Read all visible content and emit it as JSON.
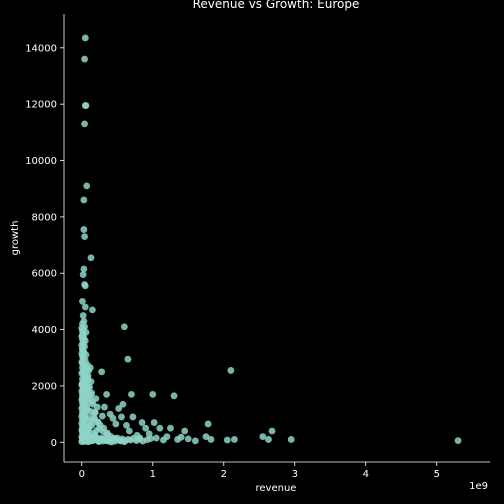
{
  "chart_data": {
    "type": "scatter",
    "title": "Revenue vs Growth: Europe",
    "xlabel": "revenue",
    "ylabel": "growth",
    "x_offset_label": "1e9",
    "xlim": [
      -0.25,
      5.75
    ],
    "ylim": [
      -700,
      15200
    ],
    "x_ticks": [
      0,
      1,
      2,
      3,
      4,
      5
    ],
    "x_tick_labels": [
      "0",
      "1",
      "2",
      "3",
      "4",
      "5"
    ],
    "y_ticks": [
      0,
      2000,
      4000,
      6000,
      8000,
      10000,
      12000,
      14000
    ],
    "y_tick_labels": [
      "0",
      "2000",
      "4000",
      "6000",
      "8000",
      "10000",
      "12000",
      "14000"
    ],
    "grid": false,
    "marker_color": "#8dd3c7",
    "background_color": "#000000",
    "x_units": "1e9",
    "points": [
      [
        0.05,
        14350
      ],
      [
        0.04,
        13600
      ],
      [
        0.06,
        11950
      ],
      [
        0.05,
        11950
      ],
      [
        0.04,
        11300
      ],
      [
        0.07,
        9100
      ],
      [
        0.03,
        8600
      ],
      [
        0.03,
        7550
      ],
      [
        0.04,
        7300
      ],
      [
        0.13,
        6550
      ],
      [
        0.03,
        6150
      ],
      [
        0.02,
        5950
      ],
      [
        0.04,
        5600
      ],
      [
        0.05,
        5550
      ],
      [
        0.01,
        5000
      ],
      [
        0.05,
        4800
      ],
      [
        0.15,
        4700
      ],
      [
        0.6,
        4100
      ],
      [
        0.65,
        2950
      ],
      [
        0.02,
        4500
      ],
      [
        0.03,
        4300
      ],
      [
        0.01,
        4200
      ],
      [
        0.04,
        4100
      ],
      [
        0.02,
        4000
      ],
      [
        0.06,
        3900
      ],
      [
        0.01,
        3800
      ],
      [
        0.03,
        3700
      ],
      [
        0.05,
        3600
      ],
      [
        0.02,
        3500
      ],
      [
        0.04,
        3400
      ],
      [
        0.01,
        3300
      ],
      [
        0.03,
        3200
      ],
      [
        0.06,
        3100
      ],
      [
        0.02,
        3000
      ],
      [
        0.05,
        2900
      ],
      [
        0.01,
        2800
      ],
      [
        0.03,
        2700
      ],
      [
        0.07,
        2600
      ],
      [
        0.12,
        2650
      ],
      [
        0.02,
        2500
      ],
      [
        0.04,
        2400
      ],
      [
        0.06,
        2300
      ],
      [
        0.09,
        2200
      ],
      [
        0.01,
        2100
      ],
      [
        0.03,
        2000
      ],
      [
        0.05,
        1900
      ],
      [
        0.08,
        1850
      ],
      [
        0.02,
        1800
      ],
      [
        0.04,
        1700
      ],
      [
        0.1,
        1650
      ],
      [
        0.01,
        1600
      ],
      [
        0.06,
        1500
      ],
      [
        0.03,
        1400
      ],
      [
        0.15,
        1450
      ],
      [
        0.02,
        1300
      ],
      [
        0.05,
        1200
      ],
      [
        0.08,
        1150
      ],
      [
        0.12,
        1100
      ],
      [
        0.01,
        1000
      ],
      [
        0.04,
        950
      ],
      [
        0.07,
        900
      ],
      [
        0.18,
        850
      ],
      [
        0.02,
        800
      ],
      [
        0.1,
        750
      ],
      [
        0.22,
        700
      ],
      [
        0.03,
        650
      ],
      [
        0.14,
        600
      ],
      [
        0.06,
        550
      ],
      [
        0.25,
        500
      ],
      [
        0.01,
        450
      ],
      [
        0.09,
        400
      ],
      [
        0.3,
        380
      ],
      [
        0.02,
        350
      ],
      [
        0.17,
        320
      ],
      [
        0.05,
        300
      ],
      [
        0.35,
        280
      ],
      [
        0.11,
        260
      ],
      [
        0.03,
        240
      ],
      [
        0.4,
        220
      ],
      [
        0.07,
        200
      ],
      [
        0.2,
        180
      ],
      [
        0.01,
        160
      ],
      [
        0.45,
        150
      ],
      [
        0.13,
        140
      ],
      [
        0.04,
        120
      ],
      [
        0.28,
        110
      ],
      [
        0.08,
        100
      ],
      [
        0.5,
        90
      ],
      [
        0.02,
        80
      ],
      [
        0.16,
        70
      ],
      [
        0.33,
        60
      ],
      [
        0.06,
        50
      ],
      [
        0.55,
        45
      ],
      [
        0.12,
        40
      ],
      [
        0.38,
        35
      ],
      [
        0.03,
        30
      ],
      [
        0.24,
        25
      ],
      [
        0.6,
        20
      ],
      [
        0.09,
        15
      ],
      [
        0.42,
        10
      ],
      [
        0.15,
        60
      ],
      [
        0.27,
        140
      ],
      [
        0.19,
        230
      ],
      [
        0.36,
        330
      ],
      [
        0.21,
        420
      ],
      [
        0.31,
        500
      ],
      [
        0.26,
        610
      ],
      [
        0.23,
        720
      ],
      [
        0.17,
        820
      ],
      [
        0.29,
        930
      ],
      [
        0.19,
        1050
      ],
      [
        0.22,
        1250
      ],
      [
        0.16,
        1350
      ],
      [
        0.2,
        1550
      ],
      [
        0.14,
        1750
      ],
      [
        0.11,
        1950
      ],
      [
        0.13,
        2150
      ],
      [
        0.09,
        2350
      ],
      [
        0.1,
        2550
      ],
      [
        0.08,
        2750
      ],
      [
        0.28,
        2500
      ],
      [
        0.35,
        1700
      ],
      [
        0.32,
        1250
      ],
      [
        0.4,
        1000
      ],
      [
        0.44,
        850
      ],
      [
        0.48,
        650
      ],
      [
        0.52,
        1200
      ],
      [
        0.58,
        1350
      ],
      [
        0.56,
        900
      ],
      [
        0.63,
        600
      ],
      [
        0.67,
        400
      ],
      [
        0.7,
        1700
      ],
      [
        0.72,
        900
      ],
      [
        0.78,
        250
      ],
      [
        0.82,
        150
      ],
      [
        0.85,
        700
      ],
      [
        0.9,
        500
      ],
      [
        0.95,
        300
      ],
      [
        1.0,
        1700
      ],
      [
        1.02,
        700
      ],
      [
        1.05,
        150
      ],
      [
        1.1,
        500
      ],
      [
        1.15,
        80
      ],
      [
        1.2,
        200
      ],
      [
        1.25,
        500
      ],
      [
        1.3,
        1650
      ],
      [
        1.35,
        100
      ],
      [
        1.4,
        180
      ],
      [
        1.45,
        400
      ],
      [
        1.5,
        120
      ],
      [
        1.6,
        50
      ],
      [
        1.75,
        200
      ],
      [
        1.78,
        650
      ],
      [
        1.82,
        100
      ],
      [
        2.05,
        80
      ],
      [
        2.1,
        2550
      ],
      [
        2.15,
        100
      ],
      [
        2.55,
        200
      ],
      [
        2.63,
        100
      ],
      [
        2.68,
        400
      ],
      [
        2.95,
        100
      ],
      [
        5.3,
        60
      ],
      [
        0.0,
        20
      ],
      [
        0.01,
        70
      ],
      [
        0.02,
        130
      ],
      [
        0.0,
        190
      ],
      [
        0.03,
        250
      ],
      [
        0.01,
        310
      ],
      [
        0.02,
        370
      ],
      [
        0.0,
        430
      ],
      [
        0.04,
        490
      ],
      [
        0.01,
        550
      ],
      [
        0.02,
        610
      ],
      [
        0.0,
        670
      ],
      [
        0.03,
        730
      ],
      [
        0.01,
        790
      ],
      [
        0.05,
        850
      ],
      [
        0.0,
        910
      ],
      [
        0.02,
        970
      ],
      [
        0.04,
        1030
      ],
      [
        0.01,
        1090
      ],
      [
        0.03,
        1150
      ],
      [
        0.0,
        1210
      ],
      [
        0.02,
        1270
      ],
      [
        0.05,
        1330
      ],
      [
        0.01,
        1390
      ],
      [
        0.03,
        1450
      ],
      [
        0.0,
        1510
      ],
      [
        0.02,
        1570
      ],
      [
        0.04,
        1630
      ],
      [
        0.01,
        1690
      ],
      [
        0.03,
        1750
      ],
      [
        0.0,
        1810
      ],
      [
        0.02,
        1870
      ],
      [
        0.05,
        1930
      ],
      [
        0.01,
        1990
      ],
      [
        0.0,
        2050
      ],
      [
        0.02,
        2150
      ],
      [
        0.01,
        2250
      ],
      [
        0.03,
        2350
      ],
      [
        0.0,
        2450
      ],
      [
        0.02,
        2550
      ],
      [
        0.01,
        2650
      ],
      [
        0.03,
        2750
      ],
      [
        0.0,
        2850
      ],
      [
        0.02,
        2950
      ],
      [
        0.01,
        3050
      ],
      [
        0.0,
        3150
      ],
      [
        0.02,
        3250
      ],
      [
        0.01,
        3350
      ],
      [
        0.0,
        3450
      ],
      [
        0.02,
        3550
      ],
      [
        0.01,
        3650
      ],
      [
        0.0,
        3750
      ],
      [
        0.02,
        3850
      ],
      [
        0.01,
        3950
      ],
      [
        0.0,
        4050
      ],
      [
        0.06,
        180
      ],
      [
        0.08,
        320
      ],
      [
        0.1,
        460
      ],
      [
        0.12,
        620
      ],
      [
        0.14,
        780
      ],
      [
        0.16,
        940
      ],
      [
        0.18,
        1080
      ],
      [
        0.07,
        1230
      ],
      [
        0.09,
        1380
      ],
      [
        0.11,
        1530
      ],
      [
        0.13,
        1680
      ],
      [
        0.07,
        1830
      ],
      [
        0.09,
        1980
      ],
      [
        0.06,
        2130
      ],
      [
        0.08,
        2280
      ],
      [
        0.06,
        2430
      ],
      [
        0.07,
        2580
      ],
      [
        0.05,
        2700
      ],
      [
        0.08,
        60
      ],
      [
        0.11,
        110
      ],
      [
        0.14,
        170
      ],
      [
        0.17,
        80
      ],
      [
        0.2,
        120
      ],
      [
        0.23,
        50
      ],
      [
        0.26,
        90
      ],
      [
        0.29,
        40
      ],
      [
        0.32,
        130
      ],
      [
        0.35,
        70
      ],
      [
        0.38,
        160
      ],
      [
        0.41,
        60
      ],
      [
        0.44,
        110
      ],
      [
        0.47,
        40
      ],
      [
        0.5,
        150
      ],
      [
        0.53,
        70
      ],
      [
        0.57,
        120
      ],
      [
        0.61,
        50
      ],
      [
        0.65,
        100
      ],
      [
        0.69,
        80
      ],
      [
        0.73,
        140
      ],
      [
        0.77,
        60
      ],
      [
        0.81,
        110
      ],
      [
        0.86,
        40
      ],
      [
        0.92,
        90
      ],
      [
        0.97,
        130
      ]
    ]
  }
}
